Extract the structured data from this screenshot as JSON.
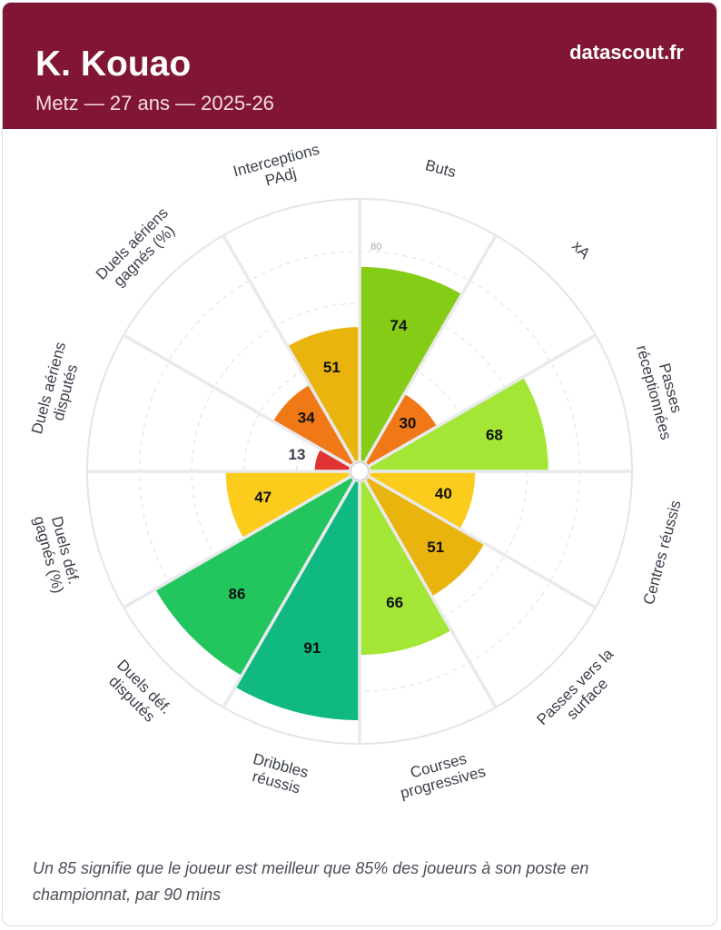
{
  "header": {
    "player_name": "K. Kouao",
    "subtitle": "Metz — 27 ans — 2025-26",
    "site": "datascout.fr"
  },
  "footnote": "Un 85 signifie que le joueur est meilleur que 85% des joueurs à son poste en championnat, par 90 mins",
  "colors": {
    "header_bg": "#801634",
    "grid": "#e4e4ea",
    "separator": "#e9e9ee"
  },
  "chart_data": {
    "type": "polar-bar",
    "max_value": 100,
    "ring_label": "80",
    "categories": [
      {
        "label": [
          "Buts"
        ],
        "value": 74,
        "color": "#84cc16"
      },
      {
        "label": [
          "xA"
        ],
        "value": 30,
        "color": "#f07817"
      },
      {
        "label": [
          "Passes",
          "réceptionnées"
        ],
        "value": 68,
        "color": "#a3e635"
      },
      {
        "label": [
          "Centres réussis"
        ],
        "value": 40,
        "color": "#fbcc1c"
      },
      {
        "label": [
          "Passes vers la",
          "surface"
        ],
        "value": 51,
        "color": "#eab40e"
      },
      {
        "label": [
          "Courses",
          "progressives"
        ],
        "value": 66,
        "color": "#a3e635"
      },
      {
        "label": [
          "Dribbles",
          "réussis"
        ],
        "value": 91,
        "color": "#10b981"
      },
      {
        "label": [
          "Duels déf.",
          "disputés"
        ],
        "value": 86,
        "color": "#22c55e"
      },
      {
        "label": [
          "Duels déf.",
          "gagnés (%)"
        ],
        "value": 47,
        "color": "#fbcc1c"
      },
      {
        "label": [
          "Duels aériens",
          "disputés"
        ],
        "value": 13,
        "color": "#e03434"
      },
      {
        "label": [
          "Duels aériens",
          "gagnés (%)"
        ],
        "value": 34,
        "color": "#f07817"
      },
      {
        "label": [
          "Interceptions",
          "PAdj"
        ],
        "value": 51,
        "color": "#eab40e"
      }
    ]
  }
}
